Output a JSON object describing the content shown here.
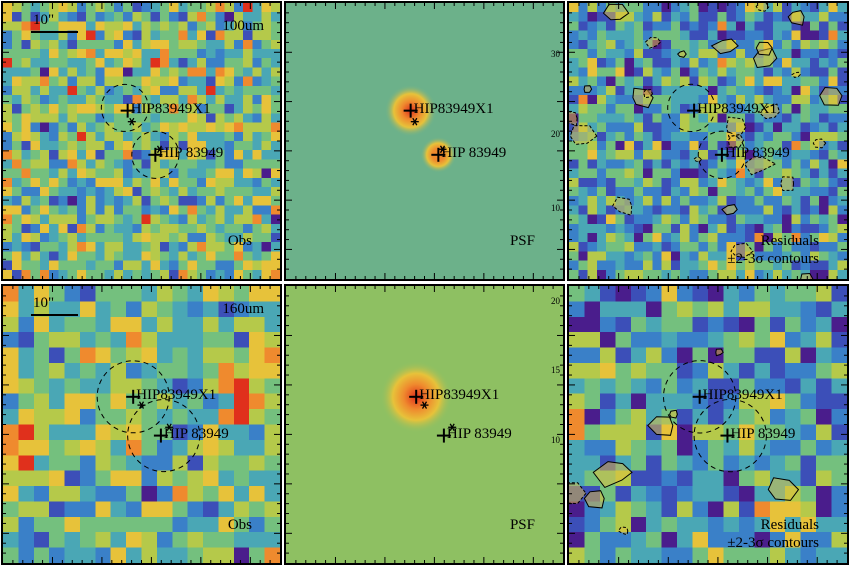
{
  "colors": {
    "cmap": [
      "#4a1d8c",
      "#3c4fb8",
      "#3a80c8",
      "#4aa7b5",
      "#74c07e",
      "#b5c94a",
      "#e7c23a",
      "#ef8a2e",
      "#e0301c"
    ],
    "psf_bg_row1": "#6cb18a",
    "psf_bg_row2": "#8ec062",
    "contour": "#000000"
  },
  "marker_icons": [
    "cross-marker-icon",
    "asterisk-marker-icon",
    "dashed-circle-aperture-icon"
  ],
  "panels": [
    {
      "id": "obs-100",
      "kind": "noise",
      "band": "100um",
      "scalebar": "10\"",
      "corner_label": "Obs",
      "sources": [
        {
          "name": "HIP83949X1",
          "fx": 0.45,
          "fy": 0.39
        },
        {
          "name": "HIP 83949",
          "fx": 0.55,
          "fy": 0.55
        }
      ],
      "circles": [
        {
          "fx": 0.44,
          "fy": 0.38,
          "fr": 0.085
        },
        {
          "fx": 0.55,
          "fy": 0.55,
          "fr": 0.085
        }
      ],
      "stars": [
        {
          "fx": 0.465,
          "fy": 0.43
        },
        {
          "fx": 0.565,
          "fy": 0.53
        }
      ],
      "axis_ticks": []
    },
    {
      "id": "psf-100",
      "kind": "psf",
      "band": "",
      "scalebar": "",
      "corner_label": "PSF",
      "sources": [
        {
          "name": "HIP83949X1",
          "fx": 0.45,
          "fy": 0.39
        },
        {
          "name": "HIP 83949",
          "fx": 0.55,
          "fy": 0.55
        }
      ],
      "circles": [],
      "stars": [
        {
          "fx": 0.465,
          "fy": 0.43
        },
        {
          "fx": 0.565,
          "fy": 0.53
        }
      ],
      "axis_ticks": [
        {
          "text": "30",
          "fy": 0.17
        },
        {
          "text": "20",
          "fy": 0.46
        },
        {
          "text": "10",
          "fy": 0.73
        }
      ]
    },
    {
      "id": "res-100",
      "kind": "residual",
      "band": "",
      "scalebar": "",
      "corner_label": "Residuals",
      "corner_label2": "±2-3σ contours",
      "sources": [
        {
          "name": "HIP83949X1",
          "fx": 0.45,
          "fy": 0.39
        },
        {
          "name": "HIP 83949",
          "fx": 0.55,
          "fy": 0.55
        }
      ],
      "circles": [
        {
          "fx": 0.44,
          "fy": 0.38,
          "fr": 0.085
        },
        {
          "fx": 0.55,
          "fy": 0.55,
          "fr": 0.085
        }
      ],
      "stars": [],
      "axis_ticks": []
    },
    {
      "id": "obs-160",
      "kind": "noise",
      "band": "160um",
      "scalebar": "10\"",
      "corner_label": "Obs",
      "sources": [
        {
          "name": "HIP83949X1",
          "fx": 0.47,
          "fy": 0.4
        },
        {
          "name": "HIP 83949",
          "fx": 0.57,
          "fy": 0.54
        }
      ],
      "circles": [
        {
          "fx": 0.47,
          "fy": 0.4,
          "fr": 0.13
        },
        {
          "fx": 0.58,
          "fy": 0.54,
          "fr": 0.13
        }
      ],
      "stars": [
        {
          "fx": 0.5,
          "fy": 0.43
        },
        {
          "fx": 0.6,
          "fy": 0.51
        }
      ],
      "axis_ticks": []
    },
    {
      "id": "psf-160",
      "kind": "psf",
      "band": "",
      "scalebar": "",
      "corner_label": "PSF",
      "sources": [
        {
          "name": "HIP83949X1",
          "fx": 0.47,
          "fy": 0.4
        },
        {
          "name": "HIP 83949",
          "fx": 0.57,
          "fy": 0.54
        }
      ],
      "circles": [],
      "stars": [
        {
          "fx": 0.5,
          "fy": 0.43
        },
        {
          "fx": 0.6,
          "fy": 0.51
        }
      ],
      "axis_ticks": [
        {
          "text": "20",
          "fy": 0.04
        },
        {
          "text": "15",
          "fy": 0.29
        },
        {
          "text": "10",
          "fy": 0.54
        }
      ]
    },
    {
      "id": "res-160",
      "kind": "residual",
      "band": "",
      "scalebar": "",
      "corner_label": "Residuals",
      "corner_label2": "±2-3σ contours",
      "sources": [
        {
          "name": "HIP83949X1",
          "fx": 0.47,
          "fy": 0.4
        },
        {
          "name": "HIP 83949",
          "fx": 0.57,
          "fy": 0.54
        }
      ],
      "circles": [
        {
          "fx": 0.47,
          "fy": 0.4,
          "fr": 0.13
        },
        {
          "fx": 0.58,
          "fy": 0.54,
          "fr": 0.13
        }
      ],
      "stars": [],
      "axis_ticks": []
    }
  ]
}
